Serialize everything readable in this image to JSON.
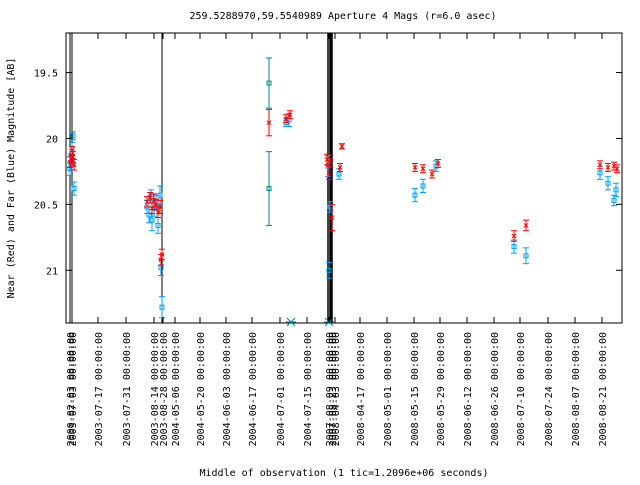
{
  "chart_data": {
    "type": "scatter",
    "title": "259.5288970,59.5540989   Aperture 4 Mags (r=6.0 asec)",
    "xlabel": "Middle of observation (1 tic=1.2096e+06 seconds)",
    "ylabel": "Near (Red) and Far (Blue) Magnitude [AB]",
    "y_reversed": true,
    "ylim": [
      21.4,
      19.2
    ],
    "y_ticks": [
      "19.5",
      "20",
      "20.5",
      "21"
    ],
    "x_tick_labels": [
      "2000-02-03 00:00:00",
      "2003-07-03 00:00:00",
      "2003-07-17 00:00:00",
      "2003-07-31 00:00:00",
      "2003-08-14 00:00:00",
      "2003-08-28 00:00:00",
      "2004-05-06 00:00:00",
      "2004-05-20 00:00:00",
      "2004-06-03 00:00:00",
      "2004-06-17 00:00:00",
      "2004-07-01 00:00:00",
      "2004-07-15 00:00:00",
      "2007-08-09 00:00:00",
      "2007-08-23 00:00:00",
      "2008-04-03 00:00:00",
      "2008-04-17 00:00:00",
      "2008-05-01 00:00:00",
      "2008-05-15 00:00:00",
      "2008-05-29 00:00:00",
      "2008-06-12 00:00:00",
      "2008-06-26 00:00:00",
      "2008-07-10 00:00:00",
      "2008-07-24 00:00:00",
      "2008-08-07 00:00:00",
      "2008-08-21 00:00:00"
    ],
    "grid": false,
    "legend": "none",
    "colors": {
      "near": "#ff0000",
      "far": "#00a0ff",
      "far_outlier": "#008b8b",
      "axis": "#000000"
    },
    "series": [
      {
        "name": "Near",
        "marker": "x",
        "points": []
      },
      {
        "name": "Far",
        "marker": "square",
        "points": []
      }
    ]
  }
}
